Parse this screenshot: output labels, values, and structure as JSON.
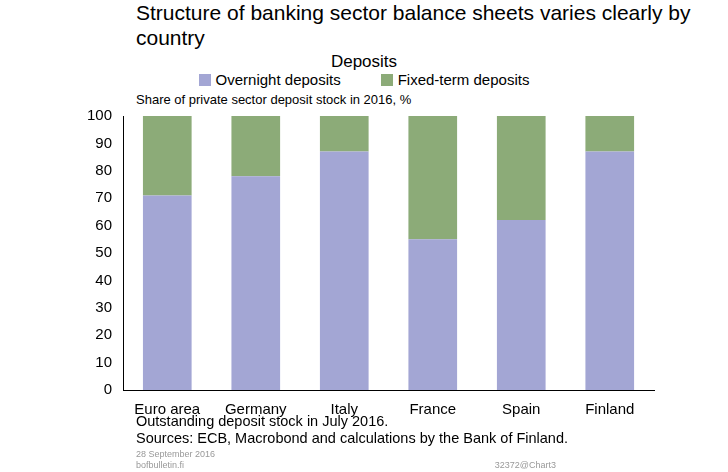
{
  "chart_data": {
    "type": "bar",
    "title": "Structure of banking sector balance sheets varies clearly by country",
    "subtitle": "Deposits",
    "y_label": "Share of private sector deposit stock in 2016, %",
    "annotations": [
      "Outstanding deposit stock in July 2016.",
      "Sources: ECB, Macrobond and calculations by the Bank of Finland.",
      "28 September 2016",
      "bofbulletin.fi",
      "32372@Chart3"
    ],
    "categories": [
      "Euro area",
      "Germany",
      "Italy",
      "France",
      "Spain",
      "Finland"
    ],
    "series": [
      {
        "name": "Overnight deposits",
        "color": "#a3a6d4",
        "values": [
          71,
          78,
          87,
          55,
          62,
          87
        ]
      },
      {
        "name": "Fixed-term deposits",
        "color": "#8cab78",
        "values": [
          29,
          22,
          13,
          45,
          38,
          13
        ]
      }
    ],
    "stacked": true,
    "ylim": [
      0,
      100
    ],
    "yticks": [
      0,
      10,
      20,
      30,
      40,
      50,
      60,
      70,
      80,
      90,
      100
    ],
    "grid": false,
    "legend": "top"
  }
}
